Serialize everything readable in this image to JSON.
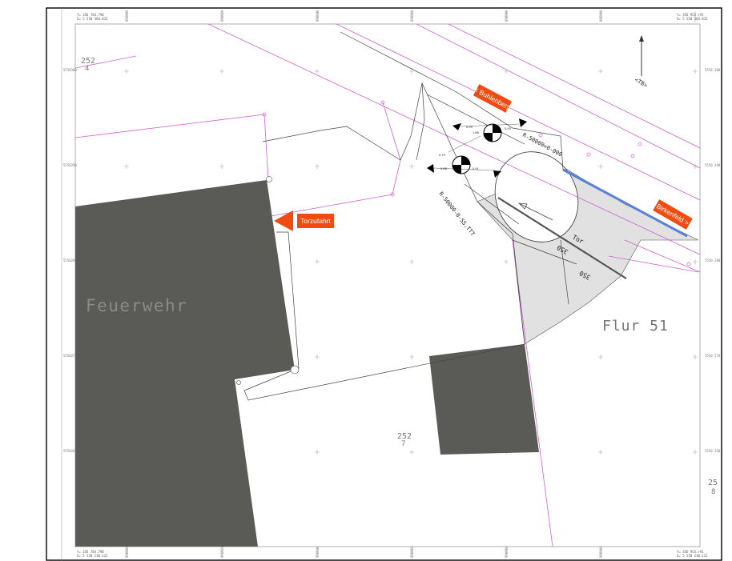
{
  "drawing": {
    "corner_coordinates": {
      "top_left": [
        "Y= 356 784.790",
        "X= 5 550 304.832"
      ],
      "top_right": [
        "Y= 356 953.+91",
        "X= 5 550 304.832"
      ],
      "bottom_left": [
        "Y= 356 784.790",
        "X= 5 550 230.122"
      ],
      "bottom_right": [
        "Y= 356 953.+91",
        "X= 5 550 230.122"
      ]
    },
    "top_tick_labels": [
      "356800",
      "356820",
      "356840",
      "356860",
      "356880",
      "356900",
      "356920"
    ],
    "bottom_tick_labels": [
      "356800",
      "356820",
      "356840",
      "356860",
      "356880",
      "356900",
      "356920"
    ],
    "left_tick_labels": [
      "5550300",
      "5550290",
      "5550280",
      "5550270",
      "5550260"
    ],
    "right_tick_labels": [
      "5550 300",
      "5550 290",
      "5550 280",
      "5550 270",
      "5550 260"
    ]
  },
  "parcels": {
    "p252_4": [
      "252",
      "4"
    ],
    "p252_7": [
      "252",
      "7"
    ],
    "p25_8": [
      "25",
      "8"
    ],
    "flur": "Flur 51"
  },
  "building_label": "Feuerwehr",
  "signs": {
    "buhlenberg": "< Buhlenberg",
    "birkenfeld": "Birkenfeld >",
    "torzufahrt": "Torzufahrt"
  },
  "labels": {
    "tor": "Tor",
    "dim_350_a": "350",
    "dim_350_b": "350",
    "radius_1": "R-50000=0-000",
    "radius_2": "R-50000-0-SS.TTT",
    "north_label": "<TB>"
  },
  "colors": {
    "building": "#5a5a56",
    "sign_orange": "#f04b10",
    "swept_area": "#e1e1e1",
    "boundary_magenta": "#d060d0",
    "kerb_blue": "#5b82d6"
  }
}
